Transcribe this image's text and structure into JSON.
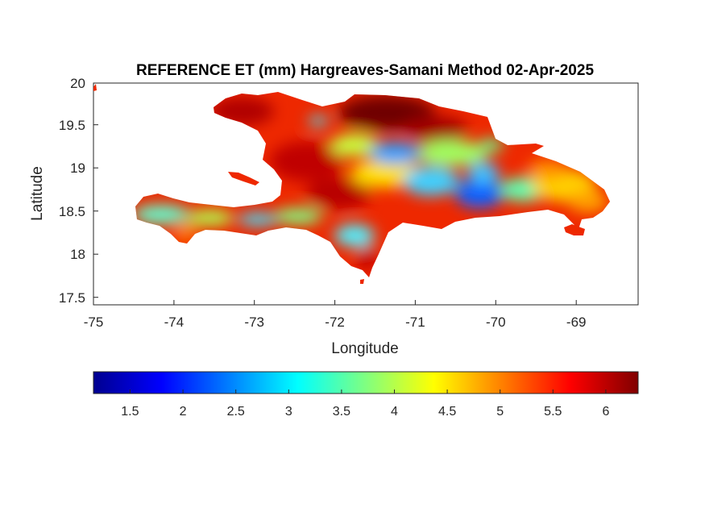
{
  "chart_data": {
    "type": "heatmap",
    "title": "REFERENCE ET (mm) Hargreaves-Samani Method  02-Apr-2025",
    "xlabel": "Longitude",
    "ylabel": "Latitude",
    "xlim": [
      -75,
      -68.23
    ],
    "ylim": [
      17.43,
      20
    ],
    "xticks": [
      -75,
      -74,
      -73,
      -72,
      -71,
      -70,
      -69
    ],
    "xtick_labels": [
      "-75",
      "-74",
      "-73",
      "-72",
      "-71",
      "-70",
      "-69"
    ],
    "yticks": [
      17.5,
      18,
      18.5,
      19,
      19.5,
      20
    ],
    "ytick_labels": [
      "17.5",
      "18",
      "18.5",
      "19",
      "19.5",
      "20"
    ],
    "colormap": "jet",
    "colorbar": {
      "orientation": "horizontal",
      "location": "below",
      "range": [
        1.15,
        6.3
      ],
      "ticks": [
        1.5,
        2,
        2.5,
        3,
        3.5,
        4,
        4.5,
        5,
        5.5,
        6
      ],
      "tick_labels": [
        "1.5",
        "2",
        "2.5",
        "3",
        "3.5",
        "4",
        "4.5",
        "5",
        "5.5",
        "6"
      ]
    },
    "region": "Hispaniola (Haiti and Dominican Republic)",
    "colors": {
      "low": "#00008f",
      "mid_low": "#00bfff",
      "mid": "#80ff80",
      "mid_high": "#ffff00",
      "high": "#ff2000",
      "max": "#800000"
    },
    "zones": [
      {
        "area": "northwest Haiti peninsula",
        "value": 5.8
      },
      {
        "area": "north coast Dominican Republic",
        "value": 6.1
      },
      {
        "area": "central highlands (Cordillera Central)",
        "value": 2.6
      },
      {
        "area": "eastern Dominican Republic",
        "value": 4.4
      },
      {
        "area": "southern Haiti peninsula",
        "value": 3.3
      },
      {
        "area": "Barahona peninsula",
        "value": 5.9
      },
      {
        "area": "Tortuga island",
        "value": 5.6
      },
      {
        "area": "Gonave island",
        "value": 5.7
      }
    ]
  }
}
